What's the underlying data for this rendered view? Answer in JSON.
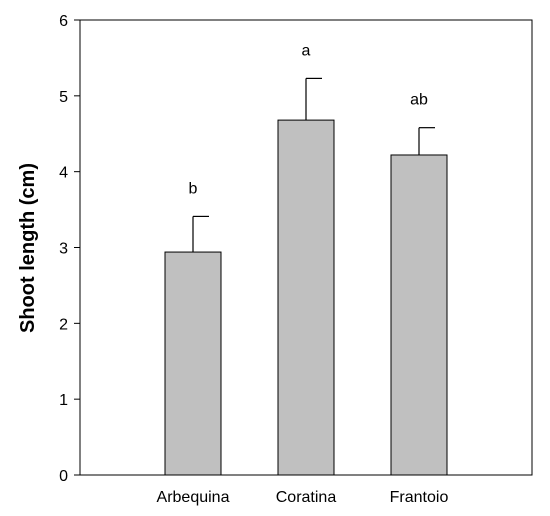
{
  "chart_data": {
    "type": "bar",
    "title": "",
    "xlabel": "",
    "ylabel": "Shoot length (cm)",
    "categories": [
      "Arbequina",
      "Coratina",
      "Frantoio"
    ],
    "values": [
      2.94,
      4.68,
      4.22
    ],
    "error_plus": [
      0.47,
      0.55,
      0.36
    ],
    "significance_labels": [
      "b",
      "a",
      "ab"
    ],
    "ylim": [
      0,
      6
    ],
    "yticks": [
      0,
      1,
      2,
      3,
      4,
      5,
      6
    ],
    "grid": false,
    "bar_color": "#c0c0c0",
    "axis_color": "#000000"
  }
}
